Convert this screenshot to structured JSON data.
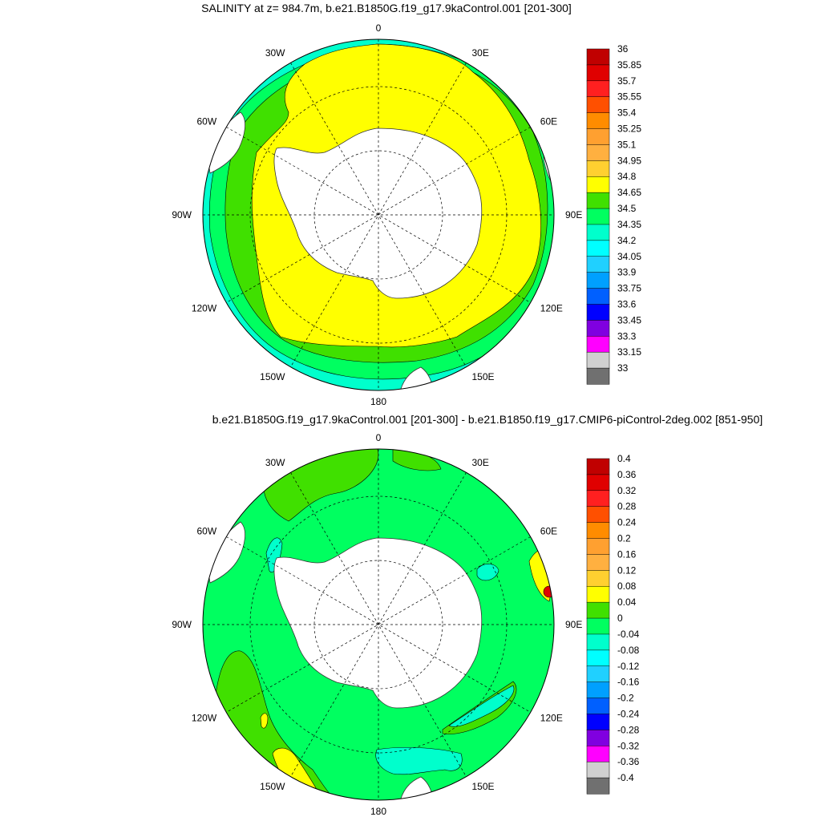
{
  "panels": [
    {
      "title": "SALINITY at z= 984.7m, b.e21.B1850G.f19_g17.9kaControl.001 [201-300]",
      "lon_labels": [
        "0",
        "30E",
        "60E",
        "90E",
        "120E",
        "150E",
        "180",
        "150W",
        "120W",
        "90W",
        "60W",
        "30W"
      ],
      "colorbar": {
        "labels": [
          "36",
          "35.85",
          "35.7",
          "35.55",
          "35.4",
          "35.25",
          "35.1",
          "34.95",
          "34.8",
          "34.65",
          "34.5",
          "34.35",
          "34.2",
          "34.05",
          "33.9",
          "33.75",
          "33.6",
          "33.45",
          "33.3",
          "33.15",
          "33"
        ],
        "colors": [
          "#c00000",
          "#e00000",
          "#ff2020",
          "#ff5000",
          "#ff8c00",
          "#ffa030",
          "#ffb040",
          "#ffd030",
          "#ffff00",
          "#40e000",
          "#00ff60",
          "#00ffcc",
          "#00ffff",
          "#20d0ff",
          "#00a0ff",
          "#0060ff",
          "#0000ff",
          "#8000e0",
          "#ff00ff",
          "#d0d0d0",
          "#707070"
        ]
      }
    },
    {
      "title": "b.e21.B1850G.f19_g17.9kaControl.001 [201-300] - b.e21.B1850.f19_g17.CMIP6-piControl-2deg.002 [851-950]",
      "lon_labels": [
        "0",
        "30E",
        "60E",
        "90E",
        "120E",
        "150E",
        "180",
        "150W",
        "120W",
        "90W",
        "60W",
        "30W"
      ],
      "colorbar": {
        "labels": [
          "0.4",
          "0.36",
          "0.32",
          "0.28",
          "0.24",
          "0.2",
          "0.16",
          "0.12",
          "0.08",
          "0.04",
          "0",
          "-0.04",
          "-0.08",
          "-0.12",
          "-0.16",
          "-0.2",
          "-0.24",
          "-0.28",
          "-0.32",
          "-0.36",
          "-0.4"
        ],
        "colors": [
          "#c00000",
          "#e00000",
          "#ff2020",
          "#ff5000",
          "#ff8c00",
          "#ffa030",
          "#ffb040",
          "#ffd030",
          "#ffff00",
          "#40e000",
          "#00ff60",
          "#00ffcc",
          "#00ffff",
          "#20d0ff",
          "#00a0ff",
          "#0060ff",
          "#0000ff",
          "#8000e0",
          "#ff00ff",
          "#d0d0d0",
          "#707070"
        ]
      }
    }
  ]
}
